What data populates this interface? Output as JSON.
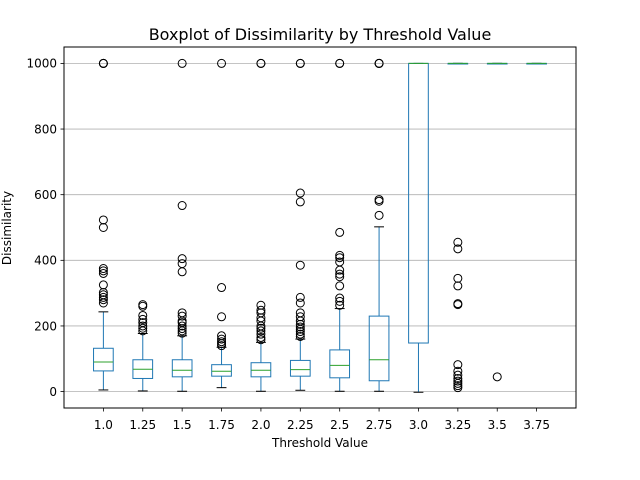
{
  "chart_data": {
    "type": "boxplot",
    "title": "Boxplot of Dissimilarity by Threshold Value",
    "xlabel": "Threshold Value",
    "ylabel": "Dissimilarity",
    "ylim": [
      -50,
      1050
    ],
    "yticks": [
      0,
      200,
      400,
      600,
      800,
      1000
    ],
    "grid": "horizontal",
    "colors": {
      "box": "#1f77b4",
      "median": "#2ca02c",
      "grid": "#b0b0b0"
    },
    "categories": [
      "1.0",
      "1.25",
      "1.5",
      "1.75",
      "2.0",
      "2.25",
      "2.5",
      "2.75",
      "3.0",
      "3.25",
      "3.5",
      "3.75"
    ],
    "boxes": [
      {
        "whislo": 5,
        "q1": 63,
        "med": 90,
        "q3": 132,
        "whishi": 243,
        "fliers": [
          270,
          280,
          287,
          295,
          302,
          325,
          360,
          368,
          375,
          500,
          523,
          1000,
          1000,
          1000
        ]
      },
      {
        "whislo": 2,
        "q1": 40,
        "med": 68,
        "q3": 97,
        "whishi": 177,
        "fliers": [
          185,
          193,
          200,
          210,
          220,
          232,
          260,
          265
        ]
      },
      {
        "whislo": 1,
        "q1": 45,
        "med": 65,
        "q3": 97,
        "whishi": 170,
        "fliers": [
          178,
          185,
          192,
          200,
          210,
          215,
          230,
          240,
          365,
          390,
          405,
          567,
          1000
        ]
      },
      {
        "whislo": 12,
        "q1": 47,
        "med": 62,
        "q3": 82,
        "whishi": 135,
        "fliers": [
          140,
          146,
          152,
          160,
          170,
          228,
          317,
          1000
        ]
      },
      {
        "whislo": 1,
        "q1": 45,
        "med": 65,
        "q3": 88,
        "whishi": 150,
        "fliers": [
          158,
          165,
          175,
          185,
          193,
          200,
          215,
          225,
          240,
          248,
          263,
          1000,
          1000
        ]
      },
      {
        "whislo": 4,
        "q1": 47,
        "med": 67,
        "q3": 95,
        "whishi": 160,
        "fliers": [
          168,
          175,
          183,
          190,
          197,
          205,
          215,
          228,
          240,
          270,
          287,
          385,
          578,
          605,
          1000,
          1000
        ]
      },
      {
        "whislo": 1,
        "q1": 42,
        "med": 80,
        "q3": 127,
        "whishi": 253,
        "fliers": [
          263,
          275,
          285,
          322,
          350,
          358,
          370,
          395,
          408,
          415,
          485,
          1000,
          1000
        ]
      },
      {
        "whislo": 1,
        "q1": 33,
        "med": 97,
        "q3": 230,
        "whishi": 502,
        "fliers": [
          537,
          580,
          585,
          1000,
          1000,
          1000
        ]
      },
      {
        "whislo": -2,
        "q1": 148,
        "med": 1000,
        "q3": 1000,
        "whishi": 1000,
        "fliers": []
      },
      {
        "whislo": 1000,
        "q1": 1000,
        "med": 1000,
        "q3": 1000,
        "whishi": 1000,
        "fliers": [
          12,
          18,
          25,
          32,
          40,
          50,
          62,
          82,
          265,
          268,
          322,
          345,
          435,
          455
        ]
      },
      {
        "whislo": 1000,
        "q1": 1000,
        "med": 1000,
        "q3": 1000,
        "whishi": 1000,
        "fliers": [
          45
        ]
      },
      {
        "whislo": 1000,
        "q1": 1000,
        "med": 1000,
        "q3": 1000,
        "whishi": 1000,
        "fliers": []
      }
    ]
  }
}
